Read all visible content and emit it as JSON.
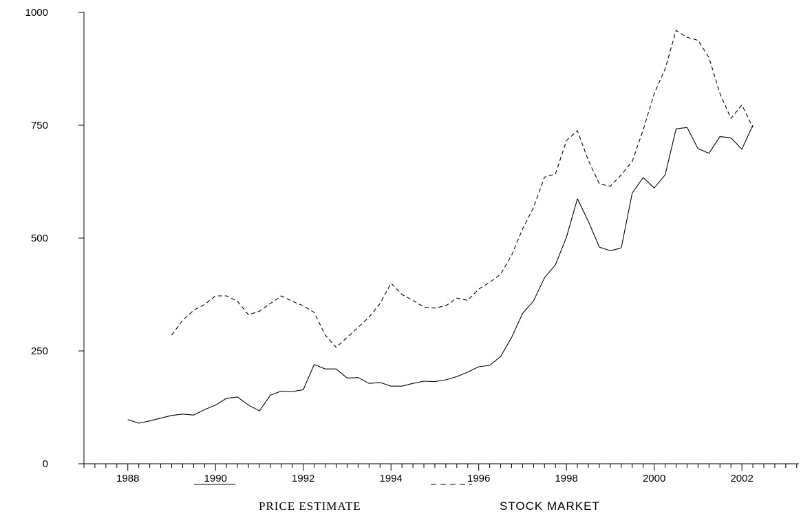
{
  "chart_data": {
    "type": "line",
    "title": "",
    "xlabel": "",
    "ylabel": "",
    "xlim": [
      1987.0,
      2003.3
    ],
    "ylim": [
      0,
      1000
    ],
    "yticks": [
      0,
      250,
      500,
      750,
      1000
    ],
    "ytick_labels": [
      "0",
      "250",
      "500",
      "750",
      "1000"
    ],
    "xticks": [
      1988,
      1990,
      1992,
      1994,
      1996,
      1998,
      2000,
      2002
    ],
    "xtick_labels": [
      "1988",
      "1990",
      "1992",
      "1994",
      "1996",
      "1998",
      "2000",
      "2002"
    ],
    "grid": false,
    "legend_position": "bottom",
    "series": [
      {
        "name": "PRICE ESTIMATE",
        "style": "solid",
        "x": [
          1988.0,
          1988.25,
          1988.5,
          1988.75,
          1989.0,
          1989.25,
          1989.5,
          1989.75,
          1990.0,
          1990.25,
          1990.5,
          1990.75,
          1991.0,
          1991.25,
          1991.5,
          1991.75,
          1992.0,
          1992.25,
          1992.5,
          1992.75,
          1993.0,
          1993.25,
          1993.5,
          1993.75,
          1994.0,
          1994.25,
          1994.5,
          1994.75,
          1995.0,
          1995.25,
          1995.5,
          1995.75,
          1996.0,
          1996.25,
          1996.5,
          1996.75,
          1997.0,
          1997.25,
          1997.5,
          1997.75,
          1998.0,
          1998.25,
          1998.5,
          1998.75,
          1999.0,
          1999.25,
          1999.5,
          1999.75,
          2000.0,
          2000.25,
          2000.5,
          2000.75,
          2001.0,
          2001.25,
          2001.5,
          2001.75,
          2002.0,
          2002.25
        ],
        "values": [
          98,
          90,
          95,
          101,
          107,
          110,
          108,
          120,
          130,
          145,
          148,
          130,
          117,
          152,
          161,
          160,
          164,
          220,
          210,
          210,
          190,
          191,
          178,
          180,
          172,
          172,
          178,
          183,
          182,
          186,
          193,
          203,
          215,
          218,
          238,
          280,
          333,
          361,
          412,
          441,
          502,
          587,
          537,
          480,
          472,
          478,
          600,
          634,
          611,
          640,
          742,
          745,
          698,
          688,
          725,
          722,
          697,
          750
        ]
      },
      {
        "name": "STOCK MARKET",
        "style": "dashed",
        "x": [
          1989.0,
          1989.25,
          1989.5,
          1989.75,
          1990.0,
          1990.25,
          1990.5,
          1990.75,
          1991.0,
          1991.25,
          1991.5,
          1991.75,
          1992.0,
          1992.25,
          1992.5,
          1992.75,
          1993.0,
          1993.25,
          1993.5,
          1993.75,
          1994.0,
          1994.25,
          1994.5,
          1994.75,
          1995.0,
          1995.25,
          1995.5,
          1995.75,
          1996.0,
          1996.25,
          1996.5,
          1996.75,
          1997.0,
          1997.25,
          1997.5,
          1997.75,
          1998.0,
          1998.25,
          1998.5,
          1998.75,
          1999.0,
          1999.25,
          1999.5,
          1999.75,
          2000.0,
          2000.25,
          2000.5,
          2000.75,
          2001.0,
          2001.25,
          2001.5,
          2001.75,
          2002.0,
          2002.25
        ],
        "values": [
          285,
          318,
          340,
          353,
          372,
          372,
          360,
          330,
          338,
          355,
          372,
          360,
          350,
          335,
          285,
          258,
          280,
          302,
          325,
          355,
          400,
          375,
          362,
          347,
          345,
          350,
          367,
          362,
          387,
          402,
          420,
          462,
          520,
          568,
          635,
          642,
          716,
          738,
          672,
          620,
          615,
          640,
          670,
          740,
          820,
          875,
          960,
          945,
          938,
          900,
          820,
          765,
          795,
          745
        ]
      }
    ]
  }
}
